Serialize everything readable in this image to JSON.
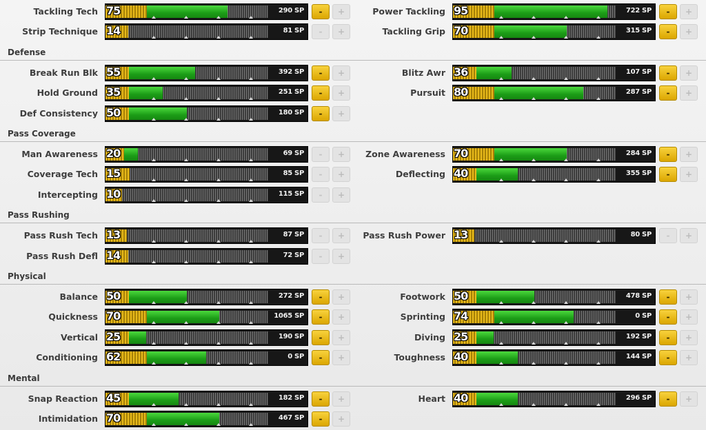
{
  "sections": [
    {
      "title": "",
      "stats": [
        {
          "label": "Tackling Tech",
          "value": "75",
          "sp": "290 SP",
          "minus_enabled": true,
          "green_end": 0.75
        },
        {
          "label": "Power Tackling",
          "value": "95",
          "sp": "722 SP",
          "minus_enabled": true,
          "green_end": 0.95
        },
        {
          "label": "Strip Technique",
          "value": "14",
          "sp": "81 SP",
          "minus_enabled": false,
          "green_end": 0.14
        },
        {
          "label": "Tackling Grip",
          "value": "70",
          "sp": "315 SP",
          "minus_enabled": true,
          "green_end": 0.7
        }
      ]
    },
    {
      "title": "Defense",
      "stats": [
        {
          "label": "Break Run Blk",
          "value": "55",
          "sp": "392 SP",
          "minus_enabled": true,
          "green_end": 0.55
        },
        {
          "label": "Blitz Awr",
          "value": "36",
          "sp": "107 SP",
          "minus_enabled": true,
          "green_end": 0.36
        },
        {
          "label": "Hold Ground",
          "value": "35",
          "sp": "251 SP",
          "minus_enabled": true,
          "green_end": 0.35
        },
        {
          "label": "Pursuit",
          "value": "80",
          "sp": "287 SP",
          "minus_enabled": true,
          "green_end": 0.8
        },
        {
          "label": "Def Consistency",
          "value": "50",
          "sp": "180 SP",
          "minus_enabled": true,
          "green_end": 0.5
        }
      ]
    },
    {
      "title": "Pass Coverage",
      "stats": [
        {
          "label": "Man Awareness",
          "value": "20",
          "sp": "69 SP",
          "minus_enabled": false,
          "green_end": 0.2
        },
        {
          "label": "Zone Awareness",
          "value": "70",
          "sp": "284 SP",
          "minus_enabled": true,
          "green_end": 0.7
        },
        {
          "label": "Coverage Tech",
          "value": "15",
          "sp": "85 SP",
          "minus_enabled": false,
          "green_end": 0.15
        },
        {
          "label": "Deflecting",
          "value": "40",
          "sp": "355 SP",
          "minus_enabled": true,
          "green_end": 0.4
        },
        {
          "label": "Intercepting",
          "value": "10",
          "sp": "115 SP",
          "minus_enabled": false,
          "green_end": 0.1
        }
      ]
    },
    {
      "title": "Pass Rushing",
      "stats": [
        {
          "label": "Pass Rush Tech",
          "value": "13",
          "sp": "87 SP",
          "minus_enabled": false,
          "green_end": 0.13
        },
        {
          "label": "Pass Rush Power",
          "value": "13",
          "sp": "80 SP",
          "minus_enabled": false,
          "green_end": 0.13
        },
        {
          "label": "Pass Rush Defl",
          "value": "14",
          "sp": "72 SP",
          "minus_enabled": false,
          "green_end": 0.14
        }
      ]
    },
    {
      "title": "Physical",
      "stats": [
        {
          "label": "Balance",
          "value": "50",
          "sp": "272 SP",
          "minus_enabled": true,
          "green_end": 0.5
        },
        {
          "label": "Footwork",
          "value": "50",
          "sp": "478 SP",
          "minus_enabled": true,
          "green_end": 0.5
        },
        {
          "label": "Quickness",
          "value": "70",
          "sp": "1065 SP",
          "minus_enabled": true,
          "green_end": 0.7
        },
        {
          "label": "Sprinting",
          "value": "74",
          "sp": "0 SP",
          "minus_enabled": true,
          "green_end": 0.74
        },
        {
          "label": "Vertical",
          "value": "25",
          "sp": "190 SP",
          "minus_enabled": true,
          "green_end": 0.25
        },
        {
          "label": "Diving",
          "value": "25",
          "sp": "192 SP",
          "minus_enabled": true,
          "green_end": 0.25
        },
        {
          "label": "Conditioning",
          "value": "62",
          "sp": "0 SP",
          "minus_enabled": true,
          "green_end": 0.62
        },
        {
          "label": "Toughness",
          "value": "40",
          "sp": "144 SP",
          "minus_enabled": true,
          "green_end": 0.4
        }
      ]
    },
    {
      "title": "Mental",
      "stats": [
        {
          "label": "Snap Reaction",
          "value": "45",
          "sp": "182 SP",
          "minus_enabled": true,
          "green_end": 0.45
        },
        {
          "label": "Heart",
          "value": "40",
          "sp": "296 SP",
          "minus_enabled": true,
          "green_end": 0.4
        },
        {
          "label": "Intimidation",
          "value": "70",
          "sp": "467 SP",
          "minus_enabled": true,
          "green_end": 0.7
        }
      ]
    }
  ],
  "buttons": {
    "minus": "-",
    "plus": "+"
  },
  "colors": {
    "gold": "#e7b91a",
    "green": "#1c9d17",
    "bar_bg": "#171717",
    "minus_btn": "#f0c20f"
  }
}
